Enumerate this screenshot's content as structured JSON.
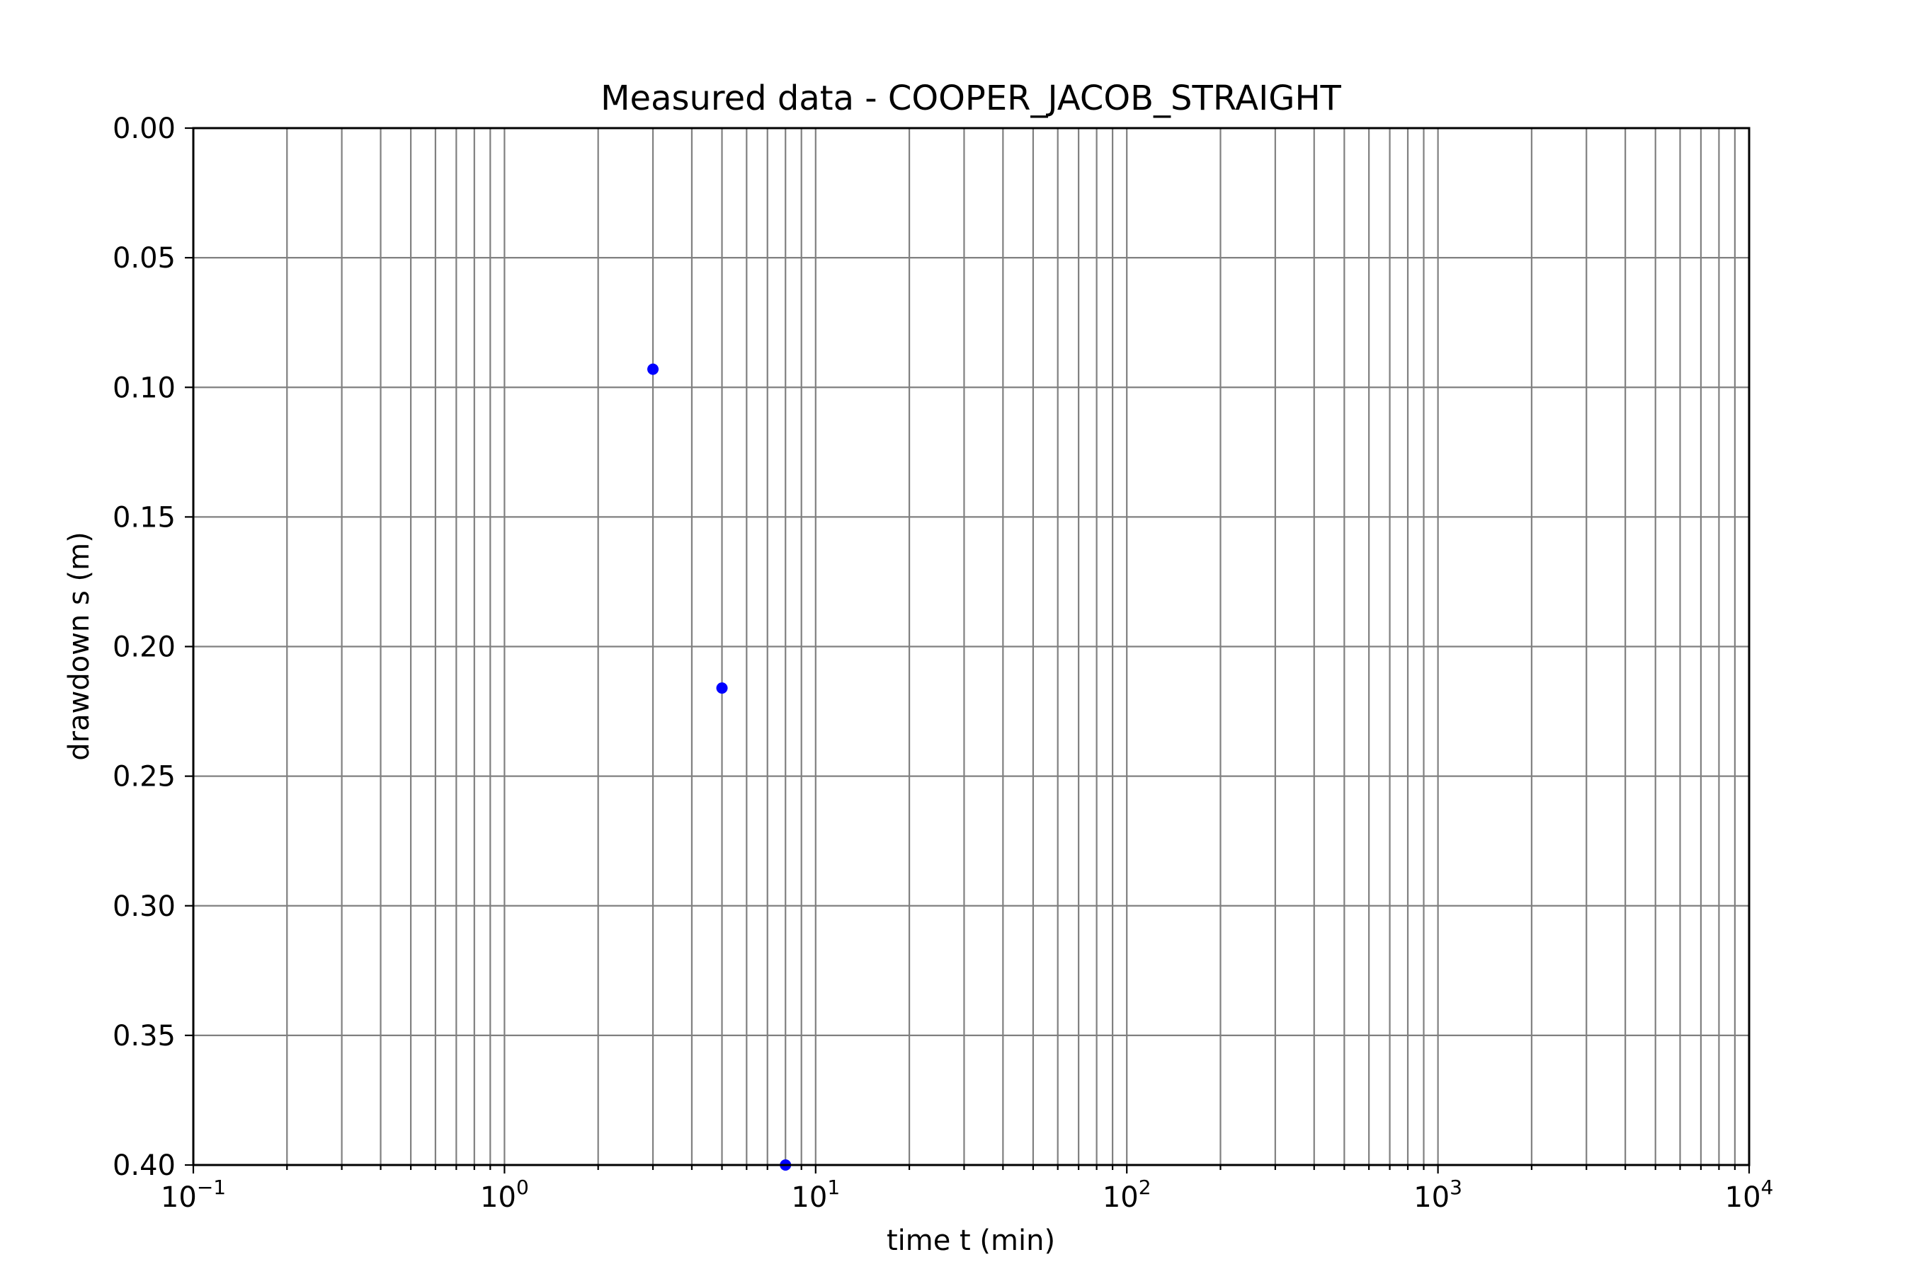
{
  "chart_data": {
    "type": "scatter",
    "title": "Measured data - COOPER_JACOB_STRAIGHT",
    "xlabel": "time t (min)",
    "ylabel": "drawdown s (m)",
    "xscale": "log",
    "xlim": [
      0.1,
      10000
    ],
    "ylim": [
      0.0,
      0.4
    ],
    "yaxis_inverted": true,
    "grid": true,
    "x_ticks": [
      {
        "value": 0.1,
        "base": "10",
        "exp": "−1"
      },
      {
        "value": 1,
        "base": "10",
        "exp": "0"
      },
      {
        "value": 10,
        "base": "10",
        "exp": "1"
      },
      {
        "value": 100,
        "base": "10",
        "exp": "2"
      },
      {
        "value": 1000,
        "base": "10",
        "exp": "3"
      },
      {
        "value": 10000,
        "base": "10",
        "exp": "4"
      }
    ],
    "y_ticks": [
      {
        "value": 0.0,
        "label": "0.00"
      },
      {
        "value": 0.05,
        "label": "0.05"
      },
      {
        "value": 0.1,
        "label": "0.10"
      },
      {
        "value": 0.15,
        "label": "0.15"
      },
      {
        "value": 0.2,
        "label": "0.20"
      },
      {
        "value": 0.25,
        "label": "0.25"
      },
      {
        "value": 0.3,
        "label": "0.30"
      },
      {
        "value": 0.35,
        "label": "0.35"
      },
      {
        "value": 0.4,
        "label": "0.40"
      }
    ],
    "series": [
      {
        "color": "#0000ff",
        "marker": "circle",
        "points": [
          {
            "x": 3,
            "y": 0.093
          },
          {
            "x": 5,
            "y": 0.216
          },
          {
            "x": 8,
            "y": 0.4
          }
        ]
      }
    ],
    "grid_color": "#808080"
  }
}
